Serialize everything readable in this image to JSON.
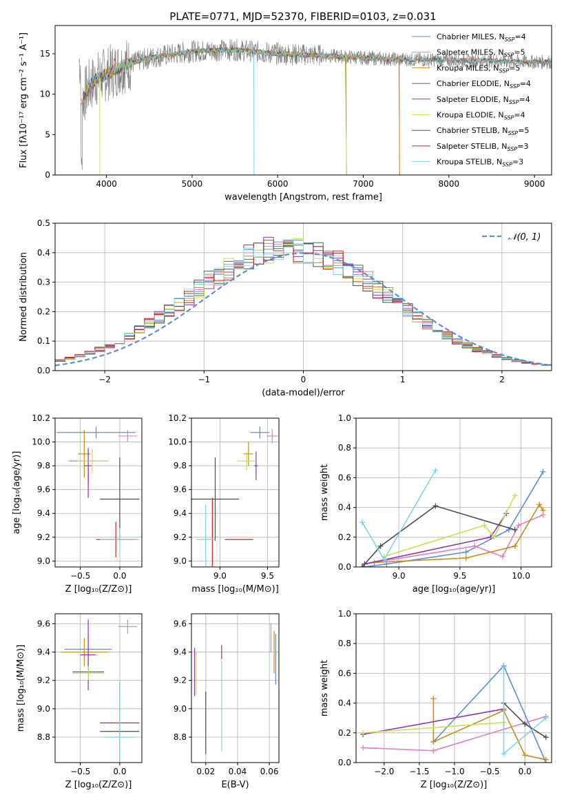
{
  "title": "PLATE=0771, MJD=52370, FIBERID=0103, z=0.031",
  "colors": {
    "chabrier_miles": "#5b8bd9",
    "salpeter_miles": "#e27cc0",
    "kroupa_miles": "#c98a12",
    "chabrier_elodie": "#3a7a3a",
    "salpeter_elodie": "#8e32b0",
    "kroupa_elodie": "#c8e04a",
    "chabrier_stelib": "#4a4a4a",
    "salpeter_stelib": "#d42020",
    "kroupa_stelib": "#79d6e0",
    "orange": "#e07826",
    "grey": "#808080",
    "gauss": "#5b8bd9"
  },
  "panels": {
    "spectrum": {
      "xlabel": "wavelength [Angstrom, rest frame]",
      "ylabel": "Flux [fλ10⁻¹⁷ erg cm⁻² s⁻¹ A⁻¹]",
      "xticks": [
        "4000",
        "5000",
        "6000",
        "7000",
        "8000",
        "9000"
      ],
      "yticks": [
        "0",
        "5",
        "10",
        "15"
      ],
      "legend": [
        {
          "model": "Chabrier MILES",
          "n": "4",
          "color": "chabrier_miles"
        },
        {
          "model": "Salpeter MILES",
          "n": "5",
          "color": "salpeter_miles"
        },
        {
          "model": "Kroupa MILES",
          "n": "5",
          "color": "kroupa_miles"
        },
        {
          "model": "Chabrier ELODIE",
          "n": "4",
          "color": "chabrier_elodie"
        },
        {
          "model": "Salpeter ELODIE",
          "n": "4",
          "color": "salpeter_elodie"
        },
        {
          "model": "Kroupa ELODIE",
          "n": "4",
          "color": "kroupa_elodie"
        },
        {
          "model": "Chabrier STELIB",
          "n": "5",
          "color": "chabrier_stelib"
        },
        {
          "model": "Salpeter STELIB",
          "n": "3",
          "color": "salpeter_stelib"
        },
        {
          "model": "Kroupa STELIB",
          "n": "3",
          "color": "kroupa_stelib"
        }
      ]
    },
    "residuals": {
      "xlabel": "(data-model)/error",
      "ylabel": "Normed distribution",
      "xticks": [
        "−2",
        "−1",
        "0",
        "1",
        "2"
      ],
      "yticks": [
        "0.0",
        "0.1",
        "0.2",
        "0.3",
        "0.4",
        "0.5"
      ],
      "legend": "𝒩(0, 1)"
    },
    "age_z": {
      "xlabel": "Z [log₁₀(Z/Z⊙)]",
      "ylabel": "age  [log₁₀(age/yr)]",
      "xticks": [
        "−0.5",
        "0.0"
      ],
      "yticks": [
        "9.0",
        "9.2",
        "9.4",
        "9.6",
        "9.8",
        "10.0",
        "10.2"
      ]
    },
    "age_mass": {
      "xlabel": "mass [log₁₀(M/M⊙)]",
      "xticks": [
        "9.0",
        "9.5"
      ],
      "yticks": [
        "9.0",
        "9.2",
        "9.4",
        "9.6",
        "9.8",
        "10.0",
        "10.2"
      ]
    },
    "weight_age": {
      "xlabel": "age  [log₁₀(age/yr)]",
      "ylabel": "mass weight",
      "xticks": [
        "9.0",
        "9.5",
        "10.0"
      ],
      "yticks": [
        "0.0",
        "0.2",
        "0.4",
        "0.6",
        "0.8",
        "1.0"
      ]
    },
    "mass_z": {
      "xlabel": "Z [log₁₀(Z/Z⊙)]",
      "ylabel": "mass [log₁₀(M/M⊙)]",
      "xticks": [
        "−0.5",
        "0.0"
      ],
      "yticks": [
        "8.8",
        "9.0",
        "9.2",
        "9.4",
        "9.6"
      ]
    },
    "mass_ebv": {
      "xlabel": "E(B-V)",
      "xticks": [
        "0.02",
        "0.04",
        "0.06"
      ],
      "yticks": [
        "8.8",
        "9.0",
        "9.2",
        "9.4",
        "9.6"
      ]
    },
    "weight_z": {
      "xlabel": "Z [log₁₀(Z/Z⊙)]",
      "ylabel": "mass weight",
      "xticks": [
        "−2.0",
        "−1.5",
        "−1.0",
        "−0.5",
        "0.0"
      ],
      "yticks": [
        "0.0",
        "0.2",
        "0.4",
        "0.6",
        "0.8",
        "1.0"
      ]
    }
  },
  "chart_data": [
    {
      "type": "line",
      "title": "PLATE=0771, MJD=52370, FIBERID=0103, z=0.031",
      "xlabel": "wavelength [Angstrom, rest frame]",
      "ylabel": "Flux [fλ10⁻¹⁷ erg cm⁻² s⁻¹ A⁻¹]",
      "xlim": [
        3400,
        9200
      ],
      "ylim": [
        0,
        18.5
      ],
      "series": [
        {
          "name": "Chabrier MILES, NSSP=4"
        },
        {
          "name": "Salpeter MILES, NSSP=5"
        },
        {
          "name": "Kroupa MILES, NSSP=5"
        },
        {
          "name": "Chabrier ELODIE, NSSP=4"
        },
        {
          "name": "Salpeter ELODIE, NSSP=4"
        },
        {
          "name": "Kroupa ELODIE, NSSP=4"
        },
        {
          "name": "Chabrier STELIB, NSSP=5"
        },
        {
          "name": "Salpeter STELIB, NSSP=3"
        },
        {
          "name": "Kroupa STELIB, NSSP=3"
        }
      ],
      "data_envelope": {
        "x": [
          3700,
          3800,
          3900,
          4000,
          4200,
          4500,
          5000,
          5500,
          6000,
          6500,
          7000,
          7400,
          8000,
          8500,
          9000,
          9200
        ],
        "y": [
          9,
          11,
          12,
          12.5,
          13.5,
          14.5,
          15.3,
          15.5,
          15,
          14.8,
          14.5,
          14.3,
          14.2,
          14.1,
          14.0,
          14.0
        ]
      }
    },
    {
      "type": "line",
      "xlabel": "(data-model)/error",
      "ylabel": "Normed distribution",
      "xlim": [
        -2.5,
        2.5
      ],
      "ylim": [
        0,
        0.5
      ],
      "grid": true,
      "legend_position": "top-right",
      "series": [
        {
          "name": "𝒩(0, 1)",
          "mean": 0,
          "sigma": 1
        }
      ]
    },
    {
      "type": "scatter",
      "xlabel": "Z [log₁₀(Z/Z⊙)]",
      "ylabel": "age  [log₁₀(age/yr)]",
      "xlim": [
        -0.82,
        0.28
      ],
      "ylim": [
        8.95,
        10.2
      ],
      "points": [
        {
          "series": "Chabrier MILES",
          "x": -0.4,
          "y": 9.84,
          "xerr": 0.25,
          "yerr": 0.08,
          "color": "chabrier_miles"
        },
        {
          "series": "Chabrier MILES",
          "x": -0.3,
          "y": 10.08,
          "xerr": 0.5,
          "yerr": 0.05,
          "color": "chabrier_miles"
        },
        {
          "series": "Salpeter MILES",
          "x": 0.1,
          "y": 10.05,
          "xerr": 0.12,
          "yerr": 0.05,
          "color": "salpeter_miles"
        },
        {
          "series": "Kroupa MILES",
          "x": -0.45,
          "y": 9.9,
          "xerr": 0.08,
          "yerr": 0.2,
          "color": "kroupa_miles"
        },
        {
          "series": "Salpeter ELODIE",
          "x": -0.4,
          "y": 9.8,
          "xerr": 0.05,
          "yerr": 0.15,
          "color": "salpeter_elodie"
        },
        {
          "series": "Kroupa ELODIE",
          "x": -0.35,
          "y": 9.84,
          "xerr": 0.2,
          "yerr": 0.1,
          "color": "kroupa_elodie"
        },
        {
          "series": "Chabrier STELIB",
          "x": 0.0,
          "y": 9.52,
          "xerr": 0.25,
          "yerr": 0.35,
          "color": "chabrier_stelib"
        },
        {
          "series": "Salpeter STELIB",
          "x": -0.05,
          "y": 9.18,
          "xerr": 0.25,
          "yerr": 0.15,
          "color": "salpeter_stelib"
        },
        {
          "series": "Kroupa STELIB",
          "x": 0.0,
          "y": 9.18,
          "xerr": 0.25,
          "yerr": 0.1,
          "color": "kroupa_stelib"
        },
        {
          "series": "Salpeter ELODIE",
          "x": -0.4,
          "y": 9.65,
          "xerr": 0.0,
          "yerr": 0.12,
          "color": "salpeter_elodie"
        }
      ]
    },
    {
      "type": "scatter",
      "xlabel": "mass [log₁₀(M/M⊙)]",
      "xlim": [
        8.7,
        9.62
      ],
      "ylim": [
        8.95,
        10.2
      ],
      "points": [
        {
          "series": "Chabrier MILES",
          "x": 9.42,
          "y": 10.08,
          "xerr": 0.1,
          "yerr": 0.05,
          "color": "chabrier_miles"
        },
        {
          "series": "Salpeter MILES",
          "x": 9.55,
          "y": 10.05,
          "xerr": 0.06,
          "yerr": 0.06,
          "color": "salpeter_miles"
        },
        {
          "series": "Kroupa MILES",
          "x": 9.3,
          "y": 9.9,
          "xerr": 0.05,
          "yerr": 0.1,
          "color": "kroupa_miles"
        },
        {
          "series": "Salpeter ELODIE",
          "x": 9.38,
          "y": 9.8,
          "xerr": 0.02,
          "yerr": 0.12,
          "color": "salpeter_elodie"
        },
        {
          "series": "Kroupa ELODIE",
          "x": 9.28,
          "y": 9.84,
          "xerr": 0.1,
          "yerr": 0.08,
          "color": "kroupa_elodie"
        },
        {
          "series": "Chabrier STELIB",
          "x": 8.95,
          "y": 9.52,
          "xerr": 0.25,
          "yerr": 0.35,
          "color": "chabrier_stelib"
        },
        {
          "series": "Salpeter STELIB",
          "x": 8.92,
          "y": 9.18,
          "xerr": 0.0,
          "yerr": 0.35,
          "color": "salpeter_stelib"
        },
        {
          "series": "Kroupa STELIB",
          "x": 8.85,
          "y": 9.18,
          "xerr": 0.1,
          "yerr": 0.3,
          "color": "kroupa_stelib"
        },
        {
          "series": "Salpeter STELIB",
          "x": 9.2,
          "y": 9.18,
          "xerr": 0.15,
          "yerr": 0.0,
          "color": "salpeter_stelib"
        }
      ]
    },
    {
      "type": "line",
      "xlabel": "age  [log₁₀(age/yr)]",
      "ylabel": "mass weight",
      "xlim": [
        8.65,
        10.25
      ],
      "ylim": [
        0,
        1.0
      ],
      "grid": true,
      "series": [
        {
          "name": "Chabrier MILES",
          "color": "chabrier_miles",
          "x": [
            8.72,
            8.9,
            9.55,
            9.9,
            10.18
          ],
          "y": [
            0.0,
            0.02,
            0.1,
            0.25,
            0.64
          ]
        },
        {
          "name": "Salpeter MILES",
          "color": "salpeter_miles",
          "x": [
            8.72,
            9.62,
            9.85,
            9.98,
            10.18
          ],
          "y": [
            0.02,
            0.14,
            0.07,
            0.28,
            0.35
          ]
        },
        {
          "name": "Kroupa MILES",
          "color": "kroupa_miles",
          "x": [
            8.8,
            9.55,
            9.95,
            10.15,
            10.18
          ],
          "y": [
            0.03,
            0.06,
            0.14,
            0.42,
            0.38
          ]
        },
        {
          "name": "Salpeter ELODIE",
          "color": "salpeter_elodie",
          "x": [
            8.72,
            9.75,
            9.88
          ],
          "y": [
            0.02,
            0.2,
            0.36
          ]
        },
        {
          "name": "Kroupa ELODIE",
          "color": "kroupa_elodie",
          "x": [
            8.88,
            9.7,
            9.78,
            9.95
          ],
          "y": [
            0.07,
            0.28,
            0.2,
            0.48
          ]
        },
        {
          "name": "Chabrier STELIB",
          "color": "chabrier_stelib",
          "x": [
            8.7,
            8.85,
            9.3,
            9.95
          ],
          "y": [
            0.0,
            0.14,
            0.41,
            0.25
          ]
        },
        {
          "name": "Kroupa STELIB",
          "color": "kroupa_stelib",
          "x": [
            8.7,
            8.88,
            9.3
          ],
          "y": [
            0.3,
            0.05,
            0.65
          ]
        }
      ]
    },
    {
      "type": "scatter",
      "xlabel": "Z [log₁₀(Z/Z⊙)]",
      "ylabel": "mass [log₁₀(M/M⊙)]",
      "xlim": [
        -0.82,
        0.28
      ],
      "ylim": [
        8.62,
        9.67
      ],
      "points": [
        {
          "series": "Chabrier MILES",
          "x": -0.4,
          "y": 9.42,
          "xerr": 0.3,
          "yerr": 0.1,
          "color": "chabrier_miles"
        },
        {
          "series": "Salpeter MILES",
          "x": 0.1,
          "y": 9.58,
          "xerr": 0.12,
          "yerr": 0.05,
          "color": "salpeter_miles"
        },
        {
          "series": "Kroupa MILES",
          "x": -0.45,
          "y": 9.4,
          "xerr": 0.3,
          "yerr": 0.1,
          "color": "kroupa_miles"
        },
        {
          "series": "Salpeter ELODIE",
          "x": -0.4,
          "y": 9.38,
          "xerr": 0.1,
          "yerr": 0.25,
          "color": "salpeter_elodie"
        },
        {
          "series": "Chabrier ELODIE",
          "x": -0.4,
          "y": 9.26,
          "xerr": 0.2,
          "yerr": 0.08,
          "color": "chabrier_elodie"
        },
        {
          "series": "Kroupa ELODIE",
          "x": -0.4,
          "y": 9.25,
          "xerr": 0.2,
          "yerr": 0.05,
          "color": "kroupa_elodie"
        },
        {
          "series": "Chabrier STELIB",
          "x": 0.0,
          "y": 8.84,
          "xerr": 0.25,
          "yerr": 0.35,
          "color": "chabrier_stelib"
        },
        {
          "series": "Salpeter STELIB",
          "x": 0.0,
          "y": 8.9,
          "xerr": 0.25,
          "yerr": 0.0,
          "color": "salpeter_stelib"
        },
        {
          "series": "Kroupa STELIB",
          "x": 0.0,
          "y": 8.8,
          "xerr": 0.2,
          "yerr": 0.4,
          "color": "kroupa_stelib"
        }
      ]
    },
    {
      "type": "scatter",
      "xlabel": "E(B-V)",
      "xlim": [
        0.011,
        0.066
      ],
      "ylim": [
        8.62,
        9.67
      ],
      "points": [
        {
          "series": "Salpeter ELODIE",
          "x": 0.013,
          "y": 9.26,
          "yerr": 0.17,
          "color": "salpeter_elodie"
        },
        {
          "series": "Kroupa ELODIE",
          "x": 0.014,
          "y": 9.25,
          "yerr": 0.15,
          "color": "kroupa_elodie"
        },
        {
          "series": "Chabrier STELIB",
          "x": 0.02,
          "y": 8.9,
          "yerr": 0.22,
          "color": "chabrier_stelib"
        },
        {
          "series": "Salpeter STELIB",
          "x": 0.03,
          "y": 9.4,
          "yerr": 0.05,
          "color": "salpeter_stelib"
        },
        {
          "series": "Kroupa STELIB",
          "x": 0.03,
          "y": 9.02,
          "yerr": 0.32,
          "color": "kroupa_stelib"
        },
        {
          "series": "Salpeter MILES",
          "x": 0.061,
          "y": 9.5,
          "yerr": 0.1,
          "color": "salpeter_miles"
        },
        {
          "series": "Kroupa MILES",
          "x": 0.063,
          "y": 9.4,
          "yerr": 0.15,
          "color": "kroupa_miles"
        },
        {
          "series": "Chabrier MILES",
          "x": 0.064,
          "y": 9.35,
          "yerr": 0.18,
          "color": "chabrier_miles"
        }
      ]
    },
    {
      "type": "line",
      "xlabel": "Z [log₁₀(Z/Z⊙)]",
      "ylabel": "mass weight",
      "xlim": [
        -2.4,
        0.38
      ],
      "ylim": [
        0,
        1.0
      ],
      "grid": true,
      "series": [
        {
          "name": "Chabrier MILES",
          "color": "chabrier_miles",
          "x": [
            -1.3,
            -0.3,
            0.3
          ],
          "y": [
            0.14,
            0.65,
            0.0
          ]
        },
        {
          "name": "Salpeter MILES",
          "color": "salpeter_miles",
          "x": [
            -2.3,
            -1.3,
            0.3
          ],
          "y": [
            0.1,
            0.08,
            0.31
          ]
        },
        {
          "name": "Kroupa MILES",
          "color": "kroupa_miles",
          "x": [
            -1.3,
            -1.3,
            -0.3,
            0.0,
            0.3
          ],
          "y": [
            0.43,
            0.14,
            0.35,
            0.05,
            0.02
          ]
        },
        {
          "name": "Salpeter ELODIE",
          "color": "salpeter_elodie",
          "x": [
            -2.3,
            -0.3
          ],
          "y": [
            0.19,
            0.36
          ]
        },
        {
          "name": "Kroupa ELODIE",
          "color": "kroupa_elodie",
          "x": [
            -2.3,
            -0.3
          ],
          "y": [
            0.2,
            0.27
          ]
        },
        {
          "name": "Chabrier STELIB",
          "color": "chabrier_stelib",
          "x": [
            -0.3,
            0.0,
            0.3
          ],
          "y": [
            0.4,
            0.26,
            0.17
          ]
        },
        {
          "name": "Kroupa STELIB",
          "color": "kroupa_stelib",
          "x": [
            -0.3,
            -0.3,
            0.3
          ],
          "y": [
            0.64,
            0.06,
            0.3
          ]
        }
      ]
    }
  ]
}
